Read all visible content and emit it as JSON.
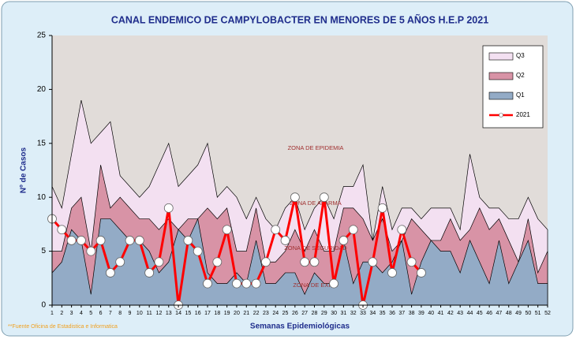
{
  "chart_data": {
    "type": "area-line",
    "title": "CANAL ENDEMICO DE CAMPYLOBACTER EN MENORES DE 5 AÑOS H.E.P 2021",
    "xlabel": "Semanas Epidemiológicas",
    "ylabel": "Nº de Casos",
    "source": "**Fuente Oficina de Estadistica e Informatica",
    "annotations": [
      "ZONA DE EPIDEMIA",
      "ZONA DE ALARMA",
      "ZONA DE SEGURIDAD",
      "ZONA DE EXITO"
    ],
    "x": [
      1,
      2,
      3,
      4,
      5,
      6,
      7,
      8,
      9,
      10,
      11,
      12,
      13,
      14,
      15,
      16,
      17,
      18,
      19,
      20,
      21,
      22,
      23,
      24,
      25,
      26,
      27,
      28,
      29,
      30,
      31,
      32,
      33,
      34,
      35,
      36,
      37,
      38,
      39,
      40,
      41,
      42,
      43,
      44,
      45,
      46,
      47,
      48,
      49,
      50,
      51,
      52
    ],
    "xlim": [
      1,
      52
    ],
    "ylim": [
      0,
      25
    ],
    "yticks": [
      0,
      5,
      10,
      15,
      20,
      25
    ],
    "legend": "upper right",
    "series": [
      {
        "name": "Q3",
        "kind": "area",
        "color": "#f3e0f1",
        "values": [
          11,
          9,
          14,
          19,
          15,
          16,
          17,
          12,
          11,
          10,
          11,
          13,
          15,
          11,
          12,
          13,
          15,
          10,
          11,
          10,
          8,
          10,
          8,
          7,
          9,
          10,
          7,
          9,
          10,
          8,
          11,
          11,
          13,
          6,
          11,
          7,
          9,
          9,
          8,
          9,
          9,
          9,
          7,
          14,
          10,
          9,
          9,
          8,
          8,
          10,
          8,
          7
        ]
      },
      {
        "name": "Q2",
        "kind": "area",
        "color": "#d893a6",
        "values": [
          5,
          5,
          9,
          10,
          5,
          13,
          9,
          10,
          9,
          8,
          8,
          7,
          8,
          7,
          8,
          8,
          9,
          8,
          9,
          5,
          5,
          9,
          4,
          4,
          5,
          7,
          5,
          7,
          5,
          5,
          9,
          9,
          8,
          6,
          8,
          5,
          6,
          8,
          7,
          6,
          6,
          8,
          6,
          7,
          9,
          7,
          8,
          6,
          4,
          8,
          3,
          5
        ]
      },
      {
        "name": "Q1",
        "kind": "area",
        "color": "#93abc6",
        "values": [
          3,
          4,
          7,
          6,
          1,
          8,
          8,
          7,
          6,
          6,
          5,
          3,
          4,
          7,
          6,
          8,
          3,
          2,
          2,
          3,
          2,
          6,
          2,
          2,
          3,
          3,
          1,
          3,
          2,
          2,
          6,
          2,
          4,
          4,
          3,
          4,
          6,
          1,
          4,
          6,
          5,
          5,
          3,
          6,
          4,
          2,
          6,
          2,
          4,
          6,
          2,
          2
        ]
      },
      {
        "name": "2021",
        "kind": "line",
        "color": "#ff0000",
        "values": [
          8,
          7,
          6,
          6,
          5,
          6,
          3,
          4,
          6,
          6,
          3,
          4,
          9,
          0,
          6,
          5,
          2,
          4,
          7,
          2,
          2,
          2,
          4,
          7,
          6,
          10,
          4,
          4,
          10,
          2,
          6,
          7,
          0,
          4,
          9,
          3,
          7,
          4,
          3,
          null,
          null,
          null,
          null,
          null,
          null,
          null,
          null,
          null,
          null,
          null,
          null,
          null
        ]
      }
    ]
  }
}
